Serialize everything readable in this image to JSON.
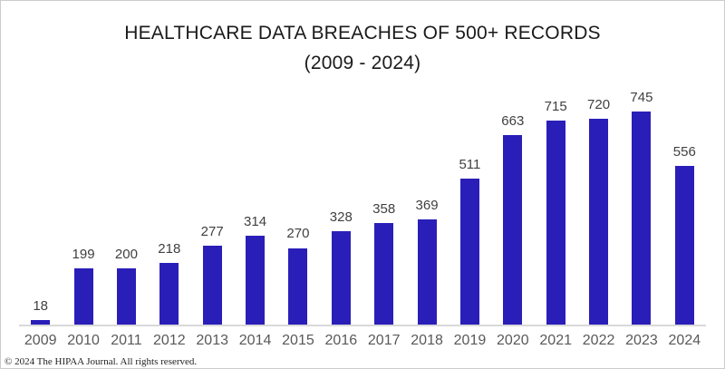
{
  "title": {
    "line1": "HEALTHCARE DATA BREACHES OF 500+ RECORDS",
    "line2": "(2009 - 2024)"
  },
  "footer": {
    "copyright": "© 2024 The HIPAA Journal. All rights reserved."
  },
  "colors": {
    "bar": "#2a1eb9",
    "axis_line": "#d9d9d9",
    "value_label": "#404040",
    "year_label": "#595959",
    "title_text": "#1a1a1a"
  },
  "chart_data": {
    "type": "bar",
    "title": "HEALTHCARE DATA BREACHES OF 500+ RECORDS (2009 - 2024)",
    "categories": [
      "2009",
      "2010",
      "2011",
      "2012",
      "2013",
      "2014",
      "2015",
      "2016",
      "2017",
      "2018",
      "2019",
      "2020",
      "2021",
      "2022",
      "2023",
      "2024"
    ],
    "values": [
      18,
      199,
      200,
      218,
      277,
      314,
      270,
      328,
      358,
      369,
      511,
      663,
      715,
      720,
      745,
      556
    ],
    "xlabel": "",
    "ylabel": "",
    "ylim": [
      0,
      780
    ],
    "y_axis_visible": false,
    "grid": false,
    "legend": null,
    "data_labels": true,
    "bar_color": "#2a1eb9"
  }
}
